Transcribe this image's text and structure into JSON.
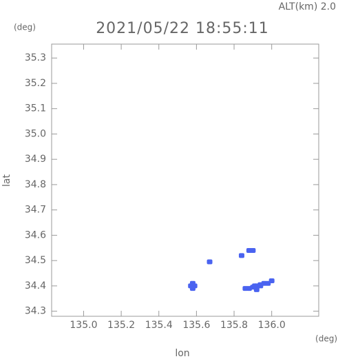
{
  "chart_data": {
    "type": "scatter",
    "annotation": "ALT(km) 2.0",
    "title": "2021/05/22 18:55:11",
    "x_unit": "(deg)",
    "y_unit": "(deg)",
    "xlabel": "lon",
    "ylabel": "lat",
    "xlim": [
      134.83,
      136.25
    ],
    "ylim": [
      34.28,
      35.355
    ],
    "xticks": [
      {
        "value": 135,
        "label": "135.0"
      },
      135.2,
      135.4,
      135.6,
      135.8,
      {
        "value": 136,
        "label": "136.0"
      }
    ],
    "yticks": [
      34.3,
      34.4,
      34.5,
      34.6,
      34.7,
      34.8,
      34.9,
      {
        "value": 35,
        "label": "35.0"
      },
      35.1,
      35.2,
      35.3
    ],
    "color": "#4a63f0",
    "x": [
      135.57,
      135.58,
      135.58,
      135.59,
      135.58,
      135.67,
      135.84,
      135.88,
      135.9,
      135.86,
      135.88,
      135.9,
      135.92,
      135.94,
      135.96,
      135.98,
      136.0,
      135.92,
      135.94,
      135.91
    ],
    "y": [
      34.4,
      34.39,
      34.4,
      34.4,
      34.41,
      34.495,
      34.52,
      34.54,
      34.54,
      34.39,
      34.39,
      34.395,
      34.4,
      34.4,
      34.41,
      34.41,
      34.42,
      34.385,
      34.405,
      34.4
    ]
  }
}
